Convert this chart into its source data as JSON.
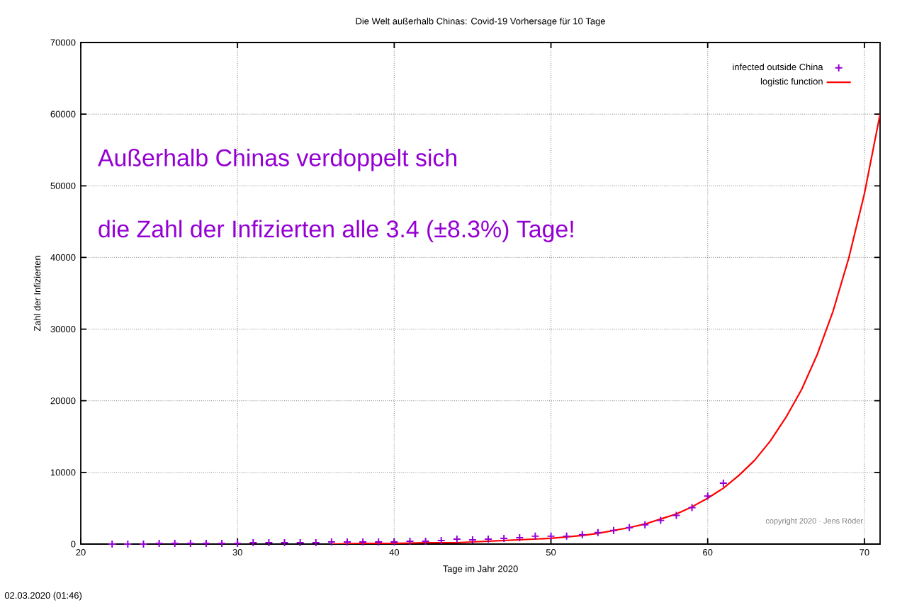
{
  "chart_data": {
    "type": "scatter",
    "title": "Die Welt außerhalb Chinas: Covid-19 Vorhersage für 10 Tage",
    "xlabel": "Tage im Jahr 2020",
    "ylabel": "Zahl der Infizierten",
    "xlim": [
      20,
      71
    ],
    "xticks": [
      20,
      30,
      40,
      50,
      60,
      70
    ],
    "ylim": [
      0,
      70000
    ],
    "yticks": [
      0,
      10000,
      20000,
      30000,
      40000,
      50000,
      60000,
      70000
    ],
    "grid": true,
    "legend": "top right",
    "series": [
      {
        "name": "infected outside China",
        "marker": "cross",
        "color": "#9400d3",
        "x": [
          22,
          23,
          24,
          25,
          26,
          27,
          28,
          29,
          30,
          31,
          32,
          33,
          34,
          35,
          36,
          37,
          38,
          39,
          40,
          41,
          42,
          43,
          44,
          45,
          46,
          47,
          48,
          49,
          50,
          51,
          52,
          53,
          54,
          55,
          56,
          57,
          58,
          59,
          60,
          61
        ],
        "values": [
          0,
          0,
          0,
          100,
          100,
          100,
          100,
          100,
          100,
          200,
          200,
          200,
          200,
          200,
          300,
          300,
          300,
          300,
          300,
          400,
          400,
          500,
          700,
          600,
          700,
          800,
          900,
          1100,
          1100,
          1100,
          1300,
          1600,
          1900,
          2300,
          2700,
          3300,
          4000,
          5100,
          6700,
          8500
        ]
      },
      {
        "name": "logistic function",
        "type": "line",
        "color": "#ff0000",
        "x": [
          36,
          38,
          40,
          42,
          44,
          46,
          48,
          50,
          51,
          52,
          53,
          54,
          55,
          56,
          57,
          58,
          59,
          60,
          61,
          62,
          63,
          64,
          65,
          66,
          67,
          68,
          69,
          70,
          71
        ],
        "values": [
          0,
          100,
          100,
          200,
          200,
          400,
          600,
          800,
          1000,
          1200,
          1500,
          1900,
          2300,
          2800,
          3500,
          4200,
          5200,
          6400,
          7800,
          9600,
          11700,
          14400,
          17700,
          21600,
          26500,
          32500,
          39900,
          48900,
          60000
        ]
      }
    ],
    "annotations": [
      "Außerhalb Chinas verdoppelt sich",
      "die Zahl der Infizierten alle 3.4 (±8.3%) Tage!",
      "copyright 2020 · Jens Röder",
      "02.03.2020 (01:46)"
    ]
  }
}
